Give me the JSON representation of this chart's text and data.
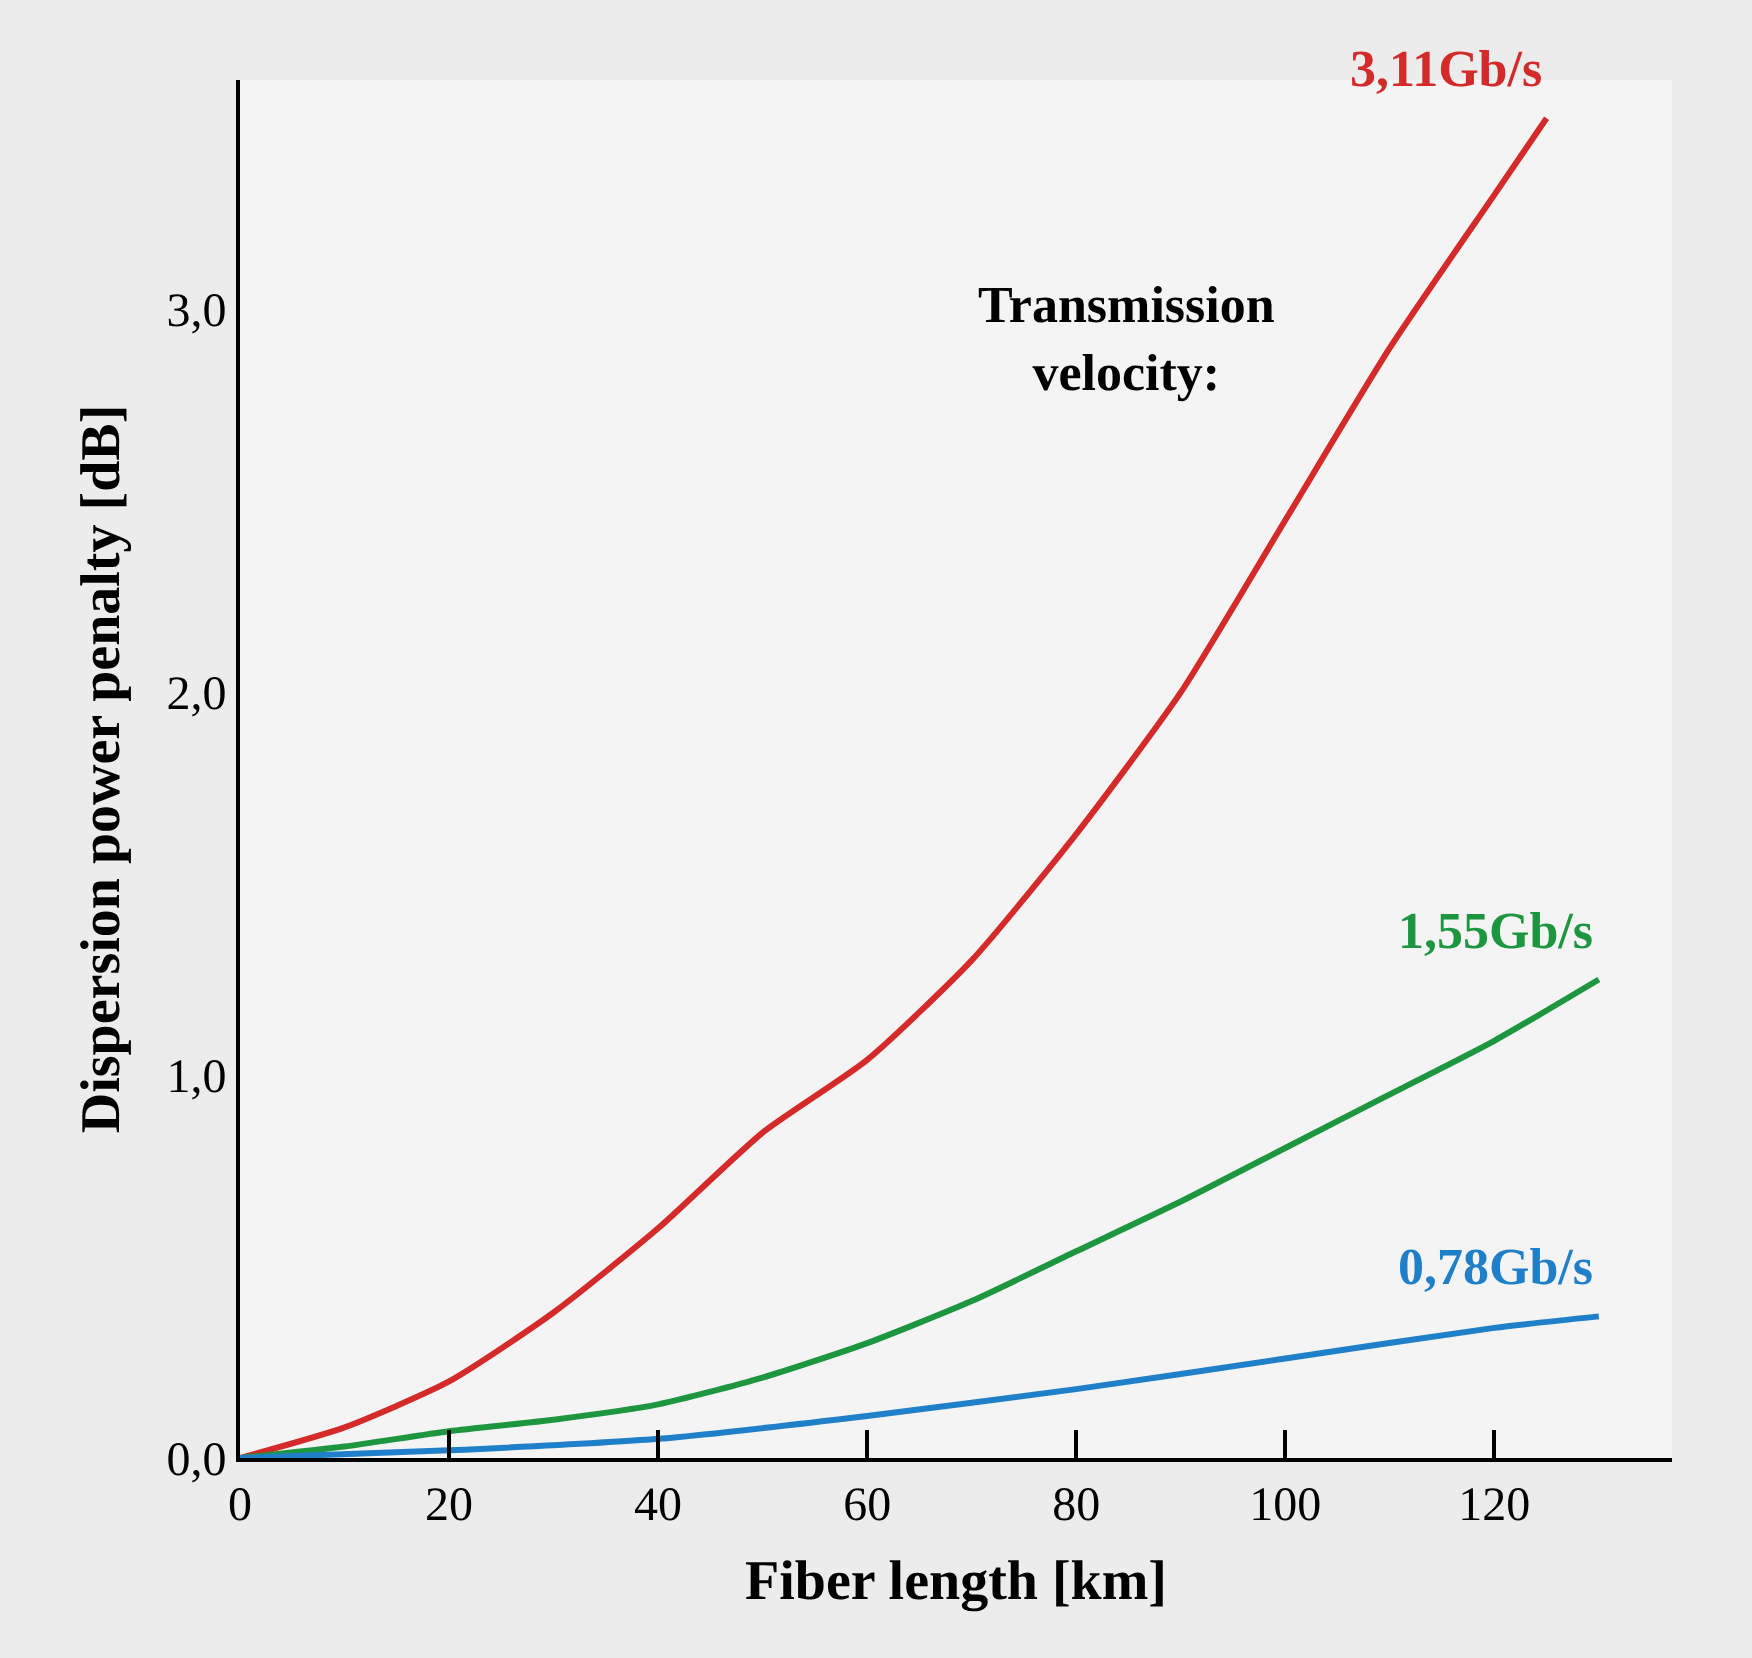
{
  "chart_data": {
    "type": "line",
    "xlabel": "Fiber length [km]",
    "ylabel": "Dispersion power penalty [dB]",
    "annotations": [
      "Transmission\nvelocity:"
    ],
    "series": [
      {
        "name": "3,11Gb/s",
        "color": "#d42a2a",
        "x": [
          0,
          10,
          20,
          30,
          40,
          50,
          60,
          70,
          80,
          90,
          100,
          110,
          120,
          125
        ],
        "values": [
          0,
          0.08,
          0.2,
          0.38,
          0.6,
          0.85,
          1.04,
          1.3,
          1.63,
          2.0,
          2.45,
          2.9,
          3.3,
          3.5
        ]
      },
      {
        "name": "1,55Gb/s",
        "color": "#1e9640",
        "x": [
          0,
          10,
          20,
          30,
          40,
          50,
          60,
          70,
          80,
          90,
          100,
          110,
          120,
          130
        ],
        "values": [
          0,
          0.03,
          0.07,
          0.1,
          0.14,
          0.21,
          0.3,
          0.41,
          0.54,
          0.67,
          0.81,
          0.95,
          1.09,
          1.25
        ]
      },
      {
        "name": "0,78Gb/s",
        "color": "#1f7fc8",
        "x": [
          0,
          20,
          40,
          60,
          80,
          100,
          120,
          130
        ],
        "values": [
          0,
          0.02,
          0.05,
          0.11,
          0.18,
          0.26,
          0.34,
          0.37
        ]
      }
    ],
    "xlim": [
      0,
      137
    ],
    "ylim": [
      0,
      3.6
    ],
    "xticks": [
      0,
      20,
      40,
      60,
      80,
      100,
      120
    ],
    "yticks": [
      {
        "value": 0,
        "label": "0,0"
      },
      {
        "value": 1,
        "label": "1,0"
      },
      {
        "value": 2,
        "label": "2,0"
      },
      {
        "value": 3,
        "label": "3,0"
      }
    ],
    "grid": false,
    "legend": false,
    "marker": "none",
    "line_style": "solid"
  }
}
